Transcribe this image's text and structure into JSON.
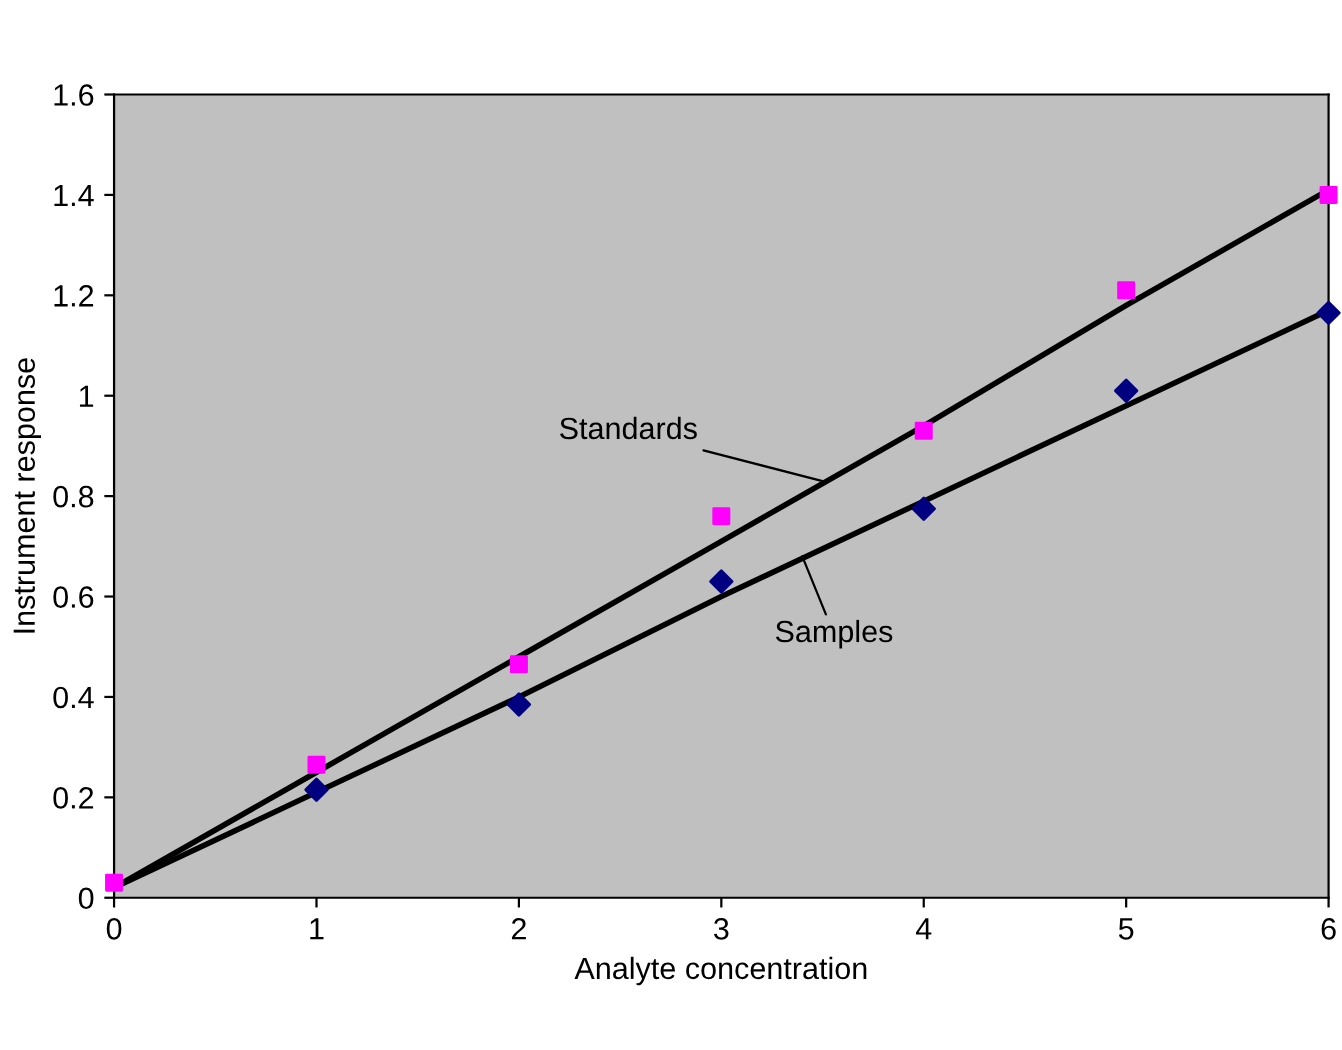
{
  "chart_data": {
    "type": "scatter",
    "xlabel": "Analyte concentration",
    "ylabel": "Instrument response",
    "x": [
      0,
      1,
      2,
      3,
      4,
      5,
      6
    ],
    "series": [
      {
        "color": "#ff00ff",
        "marker": "square",
        "values": [
          0.03,
          0.265,
          0.465,
          0.76,
          0.93,
          1.21,
          1.4
        ]
      },
      {
        "color": "#000080",
        "marker": "diamond",
        "values": [
          null,
          0.215,
          0.385,
          0.63,
          0.775,
          1.01,
          1.165
        ]
      },
      {
        "type": "line",
        "color": "#000000",
        "values": [
          0.02,
          0.25,
          0.48,
          0.71,
          0.94,
          1.18,
          1.41
        ]
      },
      {
        "type": "line",
        "color": "#000000",
        "values": [
          0.02,
          0.21,
          0.4,
          0.6,
          0.79,
          0.98,
          1.17
        ]
      }
    ],
    "annotations": [
      {
        "text": "Standards",
        "x": 3.5,
        "y": 0.83
      },
      {
        "text": "Samples",
        "x": 3.4,
        "y": 0.68
      }
    ],
    "xlim": [
      0,
      6
    ],
    "ylim": [
      0,
      1.6
    ],
    "xticks": [
      0,
      1,
      2,
      3,
      4,
      5,
      6
    ],
    "yticks": [
      0,
      0.2,
      0.4,
      0.6,
      0.8,
      1,
      1.2,
      1.4,
      1.6
    ],
    "grid": false,
    "legend": false
  }
}
